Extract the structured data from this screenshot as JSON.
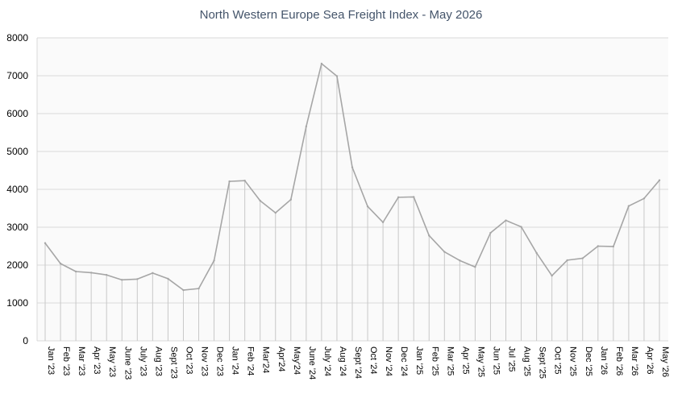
{
  "chart_data": {
    "type": "area",
    "title": "North Western Europe Sea Freight Index - May 2026",
    "xlabel": "",
    "ylabel": "",
    "ylim": [
      0,
      8000
    ],
    "yticks": [
      "0",
      "1000",
      "2000",
      "3000",
      "4000",
      "5000",
      "6000",
      "7000",
      "8000"
    ],
    "grid": true,
    "colors": {
      "line": "#a6a6a6",
      "drop": "#c8c8c8",
      "grid": "#d9d9d9",
      "plot_bg": "#fafafa"
    },
    "categories": [
      "Jan '23",
      "Feb '23",
      "Mar '23",
      "Apr '23",
      "May '23",
      "June '23",
      "July '23",
      "Aug '23",
      "Sept '23",
      "Oct '23",
      "Nov '23",
      "Dec '23",
      "Jan '24",
      "Feb '24",
      "Mar'24",
      "Apr'24",
      "May'24",
      "June '24",
      "July '24",
      "Aug '24",
      "Sept '24",
      "Oct '24",
      "Nov '24",
      "Dec '24",
      "Jan '25",
      "Feb '25",
      "Mar '25",
      "Apr '25",
      "May '25",
      "Jun '25",
      "Jul '25",
      "Aug '25",
      "Sept '25",
      "Oct '25",
      "Nov '25",
      "Dec '25",
      "Jan '26",
      "Feb '26",
      "Mar '26",
      "Apr '26",
      "May '26"
    ],
    "values": [
      2580,
      2040,
      1830,
      1800,
      1740,
      1610,
      1630,
      1790,
      1640,
      1340,
      1380,
      2120,
      4210,
      4230,
      3700,
      3380,
      3730,
      5660,
      7320,
      6990,
      4580,
      3550,
      3130,
      3790,
      3800,
      2780,
      2350,
      2120,
      1950,
      2850,
      3180,
      3010,
      2320,
      1720,
      2130,
      2180,
      2500,
      2490,
      3560,
      3760,
      4240
    ]
  }
}
